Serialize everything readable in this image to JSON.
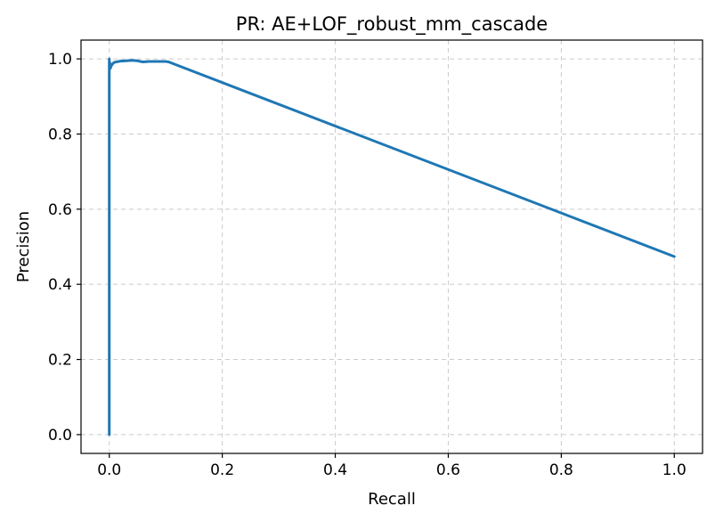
{
  "chart_data": {
    "type": "line",
    "title": "PR: AE+LOF_robust_mm_cascade",
    "xlabel": "Recall",
    "ylabel": "Precision",
    "xlim": [
      -0.05,
      1.05
    ],
    "ylim": [
      -0.05,
      1.05
    ],
    "grid": true,
    "xticks": [
      0.0,
      0.2,
      0.4,
      0.6,
      0.8,
      1.0
    ],
    "xtick_labels": [
      "0.0",
      "0.2",
      "0.4",
      "0.6",
      "0.8",
      "1.0"
    ],
    "yticks": [
      0.0,
      0.2,
      0.4,
      0.6,
      0.8,
      1.0
    ],
    "ytick_labels": [
      "0.0",
      "0.2",
      "0.4",
      "0.6",
      "0.8",
      "1.0"
    ],
    "series": [
      {
        "color": "#1f77b4",
        "x": [
          0.0,
          0.0,
          0.0,
          0.0,
          0.001,
          0.002,
          0.003,
          0.005,
          0.008,
          0.012,
          0.02,
          0.03,
          0.04,
          0.05,
          0.055,
          0.06,
          0.07,
          0.08,
          0.09,
          0.1,
          0.105,
          1.0
        ],
        "y": [
          0.0,
          0.92,
          1.0,
          0.97,
          0.99,
          0.975,
          0.98,
          0.985,
          0.99,
          0.992,
          0.994,
          0.995,
          0.996,
          0.995,
          0.993,
          0.992,
          0.993,
          0.993,
          0.993,
          0.993,
          0.992,
          0.474
        ]
      }
    ]
  }
}
